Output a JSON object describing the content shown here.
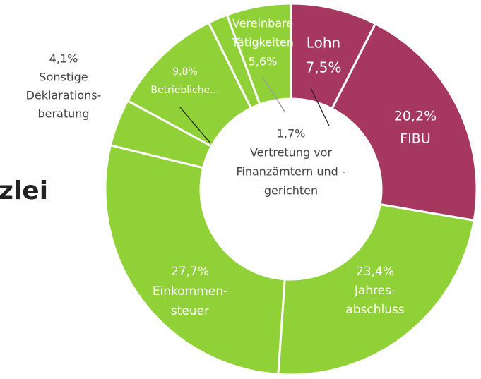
{
  "heading": "zlei",
  "chart_data": {
    "type": "donut",
    "categories": [
      [
        "Lohn"
      ],
      [
        "FIBU"
      ],
      [
        "Jahres-",
        "abschluss"
      ],
      [
        "Einkommen-",
        "steuer"
      ],
      [
        "Sonstige",
        "Deklarations-",
        "beratung"
      ],
      [
        "Betriebliche..."
      ],
      [
        "Vertretung vor",
        "Finanzämtern und -",
        "gerichten"
      ],
      [
        "Vereinbare",
        "Tätigkeiten"
      ]
    ],
    "values": [
      7.5,
      20.2,
      23.4,
      27.7,
      4.1,
      9.8,
      1.7,
      5.6
    ],
    "value_labels": [
      "7,5%",
      "20,2%",
      "23,4%",
      "27,7%",
      "4,1%",
      "9,8%",
      "1,7%",
      "5,6%"
    ],
    "colors": [
      "#a6385f",
      "#a6385f",
      "#8fd136",
      "#8fd136",
      "#8fd136",
      "#8fd136",
      "#8fd136",
      "#8fd136"
    ]
  }
}
